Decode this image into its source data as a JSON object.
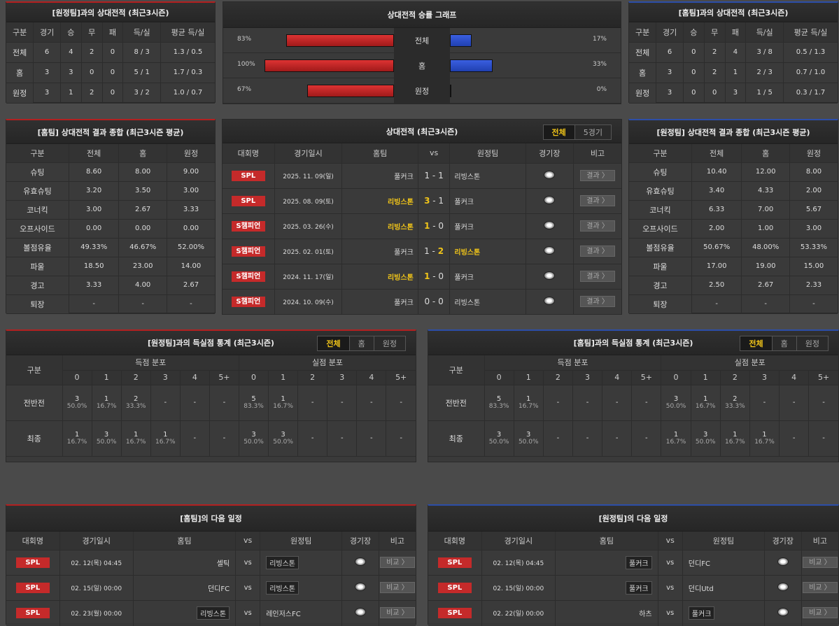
{
  "h2h_away": {
    "title": "[원정팀]과의 상대전적 (최근3시즌)",
    "headers": [
      "구분",
      "경기",
      "승",
      "무",
      "패",
      "득/실",
      "평균 득/실"
    ],
    "rows": [
      [
        "전체",
        "6",
        "4",
        "2",
        "0",
        "8 / 3",
        "1.3 / 0.5"
      ],
      [
        "홈",
        "3",
        "3",
        "0",
        "0",
        "5 / 1",
        "1.7 / 0.3"
      ],
      [
        "원정",
        "3",
        "1",
        "2",
        "0",
        "3 / 2",
        "1.0 / 0.7"
      ]
    ]
  },
  "h2h_home": {
    "title": "[홈팀]과의 상대전적 (최근3시즌)",
    "headers": [
      "구분",
      "경기",
      "승",
      "무",
      "패",
      "득/실",
      "평균 득/실"
    ],
    "rows": [
      [
        "전체",
        "6",
        "0",
        "2",
        "4",
        "3 / 8",
        "0.5 / 1.3"
      ],
      [
        "홈",
        "3",
        "0",
        "2",
        "1",
        "2 / 3",
        "0.7 / 1.0"
      ],
      [
        "원정",
        "3",
        "0",
        "0",
        "3",
        "1 / 5",
        "0.3 / 1.7"
      ]
    ]
  },
  "graph": {
    "title": "상대전적 승률 그래프",
    "rows": [
      {
        "label": "전체",
        "left": "83%",
        "right": "17%",
        "left_val": 83,
        "right_val": 17
      },
      {
        "label": "홈",
        "left": "100%",
        "right": "33%",
        "left_val": 100,
        "right_val": 33
      },
      {
        "label": "원정",
        "left": "67%",
        "right": "0%",
        "left_val": 67,
        "right_val": 0
      }
    ]
  },
  "summary_home": {
    "title": "[홈팀] 상대전적 결과 종합 (최근3시즌 평균)",
    "headers": [
      "구분",
      "전체",
      "홈",
      "원정"
    ],
    "rows": [
      [
        "슈팅",
        "8.60",
        "8.00",
        "9.00"
      ],
      [
        "유효슈팅",
        "3.20",
        "3.50",
        "3.00"
      ],
      [
        "코너킥",
        "3.00",
        "2.67",
        "3.33"
      ],
      [
        "오프사이드",
        "0.00",
        "0.00",
        "0.00"
      ],
      [
        "볼점유율",
        "49.33%",
        "46.67%",
        "52.00%"
      ],
      [
        "파울",
        "18.50",
        "23.00",
        "14.00"
      ],
      [
        "경고",
        "3.33",
        "4.00",
        "2.67"
      ],
      [
        "퇴장",
        "-",
        "-",
        "-"
      ]
    ]
  },
  "summary_away": {
    "title": "[원정팀] 상대전적 결과 종합 (최근3시즌 평균)",
    "headers": [
      "구분",
      "전체",
      "홈",
      "원정"
    ],
    "rows": [
      [
        "슈팅",
        "10.40",
        "12.00",
        "8.00"
      ],
      [
        "유효슈팅",
        "3.40",
        "4.33",
        "2.00"
      ],
      [
        "코너킥",
        "6.33",
        "7.00",
        "5.67"
      ],
      [
        "오프사이드",
        "2.00",
        "1.00",
        "3.00"
      ],
      [
        "볼점유율",
        "50.67%",
        "48.00%",
        "53.33%"
      ],
      [
        "파울",
        "17.00",
        "19.00",
        "15.00"
      ],
      [
        "경고",
        "2.50",
        "2.67",
        "2.33"
      ],
      [
        "퇴장",
        "-",
        "-",
        "-"
      ]
    ]
  },
  "matches": {
    "title": "상대전적 (최근3시즌)",
    "tabs": [
      "전체",
      "5경기"
    ],
    "headers": [
      "대회명",
      "경기일시",
      "홈팀",
      "vs",
      "원정팀",
      "경기장",
      "비고"
    ],
    "result_label": "결과 〉",
    "rows": [
      {
        "league": "SPL",
        "date": "2025. 11. 09(일)",
        "home": "풀커크",
        "hs": "1",
        "as": "1",
        "away": "리빙스톤",
        "win": "none"
      },
      {
        "league": "SPL",
        "date": "2025. 08. 09(토)",
        "home": "리빙스톤",
        "hs": "3",
        "as": "1",
        "away": "풀커크",
        "win": "home"
      },
      {
        "league": "S챔피언",
        "date": "2025. 03. 26(수)",
        "home": "리빙스톤",
        "hs": "1",
        "as": "0",
        "away": "풀커크",
        "win": "home"
      },
      {
        "league": "S챔피언",
        "date": "2025. 02. 01(토)",
        "home": "풀커크",
        "hs": "1",
        "as": "2",
        "away": "리빙스톤",
        "win": "away"
      },
      {
        "league": "S챔피언",
        "date": "2024. 11. 17(일)",
        "home": "리빙스톤",
        "hs": "1",
        "as": "0",
        "away": "풀커크",
        "win": "home"
      },
      {
        "league": "S챔피언",
        "date": "2024. 10. 09(수)",
        "home": "풀커크",
        "hs": "0",
        "as": "0",
        "away": "리빙스톤",
        "win": "none"
      }
    ]
  },
  "goals_left": {
    "title": "[원정팀]과의 득실점 통계 (최근3시즌)",
    "tabs": [
      "전체",
      "홈",
      "원정"
    ],
    "c0": "구분",
    "scored": "득점 분포",
    "conceded": "실점 분포",
    "cols": [
      "0",
      "1",
      "2",
      "3",
      "4",
      "5+"
    ],
    "rows": [
      {
        "label": "전반전",
        "cells": [
          [
            "3",
            "50.0%"
          ],
          [
            "1",
            "16.7%"
          ],
          [
            "2",
            "33.3%"
          ],
          [
            "-",
            ""
          ],
          [
            "-",
            ""
          ],
          [
            "-",
            ""
          ],
          [
            "5",
            "83.3%"
          ],
          [
            "1",
            "16.7%"
          ],
          [
            "-",
            ""
          ],
          [
            "-",
            ""
          ],
          [
            "-",
            ""
          ],
          [
            "-",
            ""
          ]
        ]
      },
      {
        "label": "최종",
        "cells": [
          [
            "1",
            "16.7%"
          ],
          [
            "3",
            "50.0%"
          ],
          [
            "1",
            "16.7%"
          ],
          [
            "1",
            "16.7%"
          ],
          [
            "-",
            ""
          ],
          [
            "-",
            ""
          ],
          [
            "3",
            "50.0%"
          ],
          [
            "3",
            "50.0%"
          ],
          [
            "-",
            ""
          ],
          [
            "-",
            ""
          ],
          [
            "-",
            ""
          ],
          [
            "-",
            ""
          ]
        ]
      }
    ]
  },
  "goals_right": {
    "title": "[홈팀]과의 득실점 통계 (최근3시즌)",
    "tabs": [
      "전체",
      "홈",
      "원정"
    ],
    "c0": "구분",
    "scored": "득점 분포",
    "conceded": "실점 분포",
    "cols": [
      "0",
      "1",
      "2",
      "3",
      "4",
      "5+"
    ],
    "rows": [
      {
        "label": "전반전",
        "cells": [
          [
            "5",
            "83.3%"
          ],
          [
            "1",
            "16.7%"
          ],
          [
            "-",
            ""
          ],
          [
            "-",
            ""
          ],
          [
            "-",
            ""
          ],
          [
            "-",
            ""
          ],
          [
            "3",
            "50.0%"
          ],
          [
            "1",
            "16.7%"
          ],
          [
            "2",
            "33.3%"
          ],
          [
            "-",
            ""
          ],
          [
            "-",
            ""
          ],
          [
            "-",
            ""
          ]
        ]
      },
      {
        "label": "최종",
        "cells": [
          [
            "3",
            "50.0%"
          ],
          [
            "3",
            "50.0%"
          ],
          [
            "-",
            ""
          ],
          [
            "-",
            ""
          ],
          [
            "-",
            ""
          ],
          [
            "-",
            ""
          ],
          [
            "1",
            "16.7%"
          ],
          [
            "3",
            "50.0%"
          ],
          [
            "1",
            "16.7%"
          ],
          [
            "1",
            "16.7%"
          ],
          [
            "-",
            ""
          ],
          [
            "-",
            ""
          ]
        ]
      }
    ]
  },
  "next_home": {
    "title": "[홈팀]의 다음 일정",
    "headers": [
      "대회명",
      "경기일시",
      "홈팀",
      "vs",
      "원정팀",
      "경기장",
      "비고"
    ],
    "btn": "비교 〉",
    "rows": [
      {
        "league": "SPL",
        "date": "02. 12(목) 04:45",
        "home": "셀틱",
        "away": "리빙스톤",
        "box": "away"
      },
      {
        "league": "SPL",
        "date": "02. 15(일) 00:00",
        "home": "던디FC",
        "away": "리빙스톤",
        "box": "away"
      },
      {
        "league": "SPL",
        "date": "02. 23(월) 00:00",
        "home": "리빙스톤",
        "away": "레인저스FC",
        "box": "home"
      }
    ]
  },
  "next_away": {
    "title": "[원정팀]의 다음 일정",
    "headers": [
      "대회명",
      "경기일시",
      "홈팀",
      "vs",
      "원정팀",
      "경기장",
      "비고"
    ],
    "btn": "비교 〉",
    "rows": [
      {
        "league": "SPL",
        "date": "02. 12(목) 04:45",
        "home": "풀커크",
        "away": "던디FC",
        "box": "home"
      },
      {
        "league": "SPL",
        "date": "02. 15(일) 00:00",
        "home": "풀커크",
        "away": "던디Utd",
        "box": "home"
      },
      {
        "league": "SPL",
        "date": "02. 22(일) 00:00",
        "home": "하츠",
        "away": "풀커크",
        "box": "away"
      }
    ]
  }
}
